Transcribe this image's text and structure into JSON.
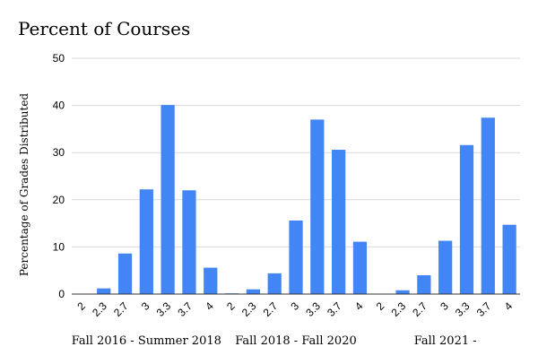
{
  "chart_data": {
    "type": "bar",
    "title": "Percent of Courses",
    "ylabel": "Percentage of Grades Distributed",
    "xlabel": "",
    "ylim": [
      0,
      50
    ],
    "yticks": [
      "0",
      "10",
      "20",
      "30",
      "40",
      "50"
    ],
    "grid": true,
    "bar_color": "#4285f4",
    "groups": [
      {
        "label": "Fall 2016 - Summer 2018",
        "categories": [
          "2",
          "2.3",
          "2.7",
          "3",
          "3.3",
          "3.7",
          "4"
        ],
        "values": [
          0,
          1.2,
          8.6,
          22.2,
          40.1,
          22.0,
          5.6
        ]
      },
      {
        "label": "Fall 2018 - Fall 2020",
        "categories": [
          "2",
          "2.3",
          "2.7",
          "3",
          "3.3",
          "3.7",
          "4"
        ],
        "values": [
          0.1,
          1.0,
          4.4,
          15.6,
          37.0,
          30.6,
          11.1
        ]
      },
      {
        "label": "Fall 2021 -",
        "categories": [
          "2",
          "2.3",
          "2.7",
          "3",
          "3.3",
          "3.7",
          "4"
        ],
        "values": [
          0,
          0.8,
          4.0,
          11.3,
          31.6,
          37.4,
          14.7
        ]
      }
    ]
  }
}
